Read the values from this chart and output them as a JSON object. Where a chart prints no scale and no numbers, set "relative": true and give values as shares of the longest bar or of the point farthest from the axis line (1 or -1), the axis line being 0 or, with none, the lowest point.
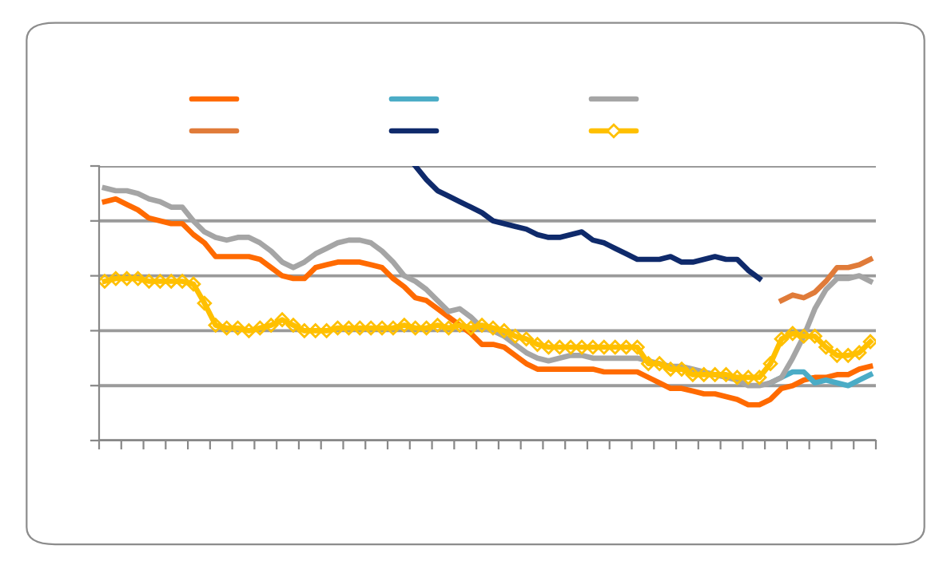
{
  "chart_data": {
    "type": "line",
    "relative": true,
    "grid": "y",
    "categories": [
      null,
      null,
      null,
      null,
      null,
      null,
      null,
      null,
      null,
      null,
      null,
      null,
      null,
      null,
      null,
      null,
      null,
      null,
      null,
      null,
      null,
      null,
      null,
      null,
      null,
      null,
      null,
      null,
      null,
      null,
      null,
      null,
      null,
      null,
      null,
      null,
      null,
      null,
      null,
      null,
      null,
      null,
      null,
      null,
      null,
      null,
      null,
      null,
      null,
      null,
      null,
      null,
      null,
      null,
      null,
      null,
      null,
      null,
      null,
      null,
      null,
      null,
      null,
      null,
      null,
      null,
      null,
      null,
      null,
      null
    ],
    "series": [
      {
        "color": "#ff6a00",
        "marker": "none",
        "values": [
          0.87,
          0.88,
          0.86,
          0.84,
          0.81,
          0.8,
          0.79,
          0.79,
          0.75,
          0.72,
          0.67,
          0.67,
          0.67,
          0.67,
          0.66,
          0.63,
          0.6,
          0.59,
          0.59,
          0.63,
          0.64,
          0.65,
          0.65,
          0.65,
          0.64,
          0.63,
          0.59,
          0.56,
          0.52,
          0.51,
          0.48,
          0.45,
          0.42,
          0.39,
          0.35,
          0.35,
          0.34,
          0.31,
          0.28,
          0.26,
          0.26,
          0.26,
          0.26,
          0.26,
          0.26,
          0.25,
          0.25,
          0.25,
          0.25,
          0.23,
          0.21,
          0.19,
          0.19,
          0.18,
          0.17,
          0.17,
          0.16,
          0.15,
          0.13,
          0.13,
          0.15,
          0.19,
          0.2,
          0.22,
          0.23,
          0.23,
          0.24,
          0.24,
          0.26,
          0.27
        ]
      },
      {
        "color": "#e07b39",
        "marker": "none",
        "values": [
          null,
          null,
          null,
          null,
          null,
          null,
          null,
          null,
          null,
          null,
          null,
          null,
          null,
          null,
          null,
          null,
          null,
          null,
          null,
          null,
          null,
          null,
          null,
          null,
          null,
          null,
          null,
          null,
          null,
          null,
          null,
          null,
          null,
          null,
          null,
          null,
          null,
          null,
          null,
          null,
          null,
          null,
          null,
          null,
          null,
          null,
          null,
          null,
          null,
          null,
          null,
          null,
          null,
          null,
          null,
          null,
          null,
          null,
          null,
          null,
          null,
          0.51,
          0.53,
          0.52,
          0.54,
          0.58,
          0.63,
          0.63,
          0.64,
          0.66
        ]
      },
      {
        "color": "#4bacc6",
        "marker": "none",
        "values": [
          null,
          null,
          null,
          null,
          null,
          null,
          null,
          null,
          null,
          null,
          null,
          null,
          null,
          null,
          null,
          null,
          null,
          null,
          null,
          null,
          null,
          null,
          null,
          null,
          null,
          null,
          null,
          null,
          null,
          null,
          null,
          null,
          null,
          null,
          null,
          null,
          null,
          null,
          null,
          null,
          null,
          null,
          null,
          null,
          null,
          null,
          null,
          null,
          null,
          null,
          null,
          null,
          null,
          null,
          null,
          null,
          null,
          null,
          null,
          null,
          0.21,
          0.23,
          0.25,
          0.25,
          0.21,
          0.22,
          0.21,
          0.2,
          0.22,
          0.24
        ]
      },
      {
        "color": "#0f2a6b",
        "marker": "none",
        "values": [
          null,
          null,
          null,
          null,
          null,
          null,
          null,
          null,
          null,
          null,
          null,
          null,
          null,
          null,
          null,
          null,
          null,
          null,
          null,
          null,
          null,
          null,
          null,
          null,
          null,
          null,
          null,
          null,
          1.0,
          0.95,
          0.91,
          0.89,
          0.87,
          0.85,
          0.83,
          0.8,
          0.79,
          0.78,
          0.77,
          0.75,
          0.74,
          0.74,
          0.75,
          0.76,
          0.73,
          0.72,
          0.7,
          0.68,
          0.66,
          0.66,
          0.66,
          0.67,
          0.65,
          0.65,
          0.66,
          0.67,
          0.66,
          0.66,
          0.62,
          0.59,
          null,
          null,
          null,
          null,
          null,
          null,
          null,
          null,
          null,
          null
        ]
      },
      {
        "color": "#a5a5a5",
        "marker": "none",
        "values": [
          0.92,
          0.91,
          0.91,
          0.9,
          0.88,
          0.87,
          0.85,
          0.85,
          0.8,
          0.76,
          0.74,
          0.73,
          0.74,
          0.74,
          0.72,
          0.69,
          0.65,
          0.63,
          0.65,
          0.68,
          0.7,
          0.72,
          0.73,
          0.73,
          0.72,
          0.69,
          0.65,
          0.6,
          0.58,
          0.55,
          0.51,
          0.47,
          0.48,
          0.45,
          0.41,
          0.4,
          0.38,
          0.35,
          0.32,
          0.3,
          0.29,
          0.3,
          0.31,
          0.31,
          0.3,
          0.3,
          0.3,
          0.3,
          0.3,
          0.29,
          0.28,
          0.27,
          0.27,
          0.26,
          0.25,
          0.24,
          0.23,
          0.22,
          0.2,
          0.2,
          0.21,
          0.23,
          0.3,
          0.38,
          0.48,
          0.55,
          0.59,
          0.59,
          0.6,
          0.58
        ]
      },
      {
        "color": "#ffc000",
        "marker": "diamond",
        "values": [
          0.58,
          0.59,
          0.59,
          0.59,
          0.58,
          0.58,
          0.58,
          0.58,
          0.57,
          0.5,
          0.42,
          0.41,
          0.41,
          0.4,
          0.41,
          0.42,
          0.44,
          0.42,
          0.4,
          0.4,
          0.4,
          0.41,
          0.41,
          0.41,
          0.41,
          0.41,
          0.41,
          0.42,
          0.41,
          0.41,
          0.42,
          0.41,
          0.42,
          0.41,
          0.42,
          0.41,
          0.4,
          0.38,
          0.37,
          0.35,
          0.34,
          0.34,
          0.34,
          0.34,
          0.34,
          0.34,
          0.34,
          0.34,
          0.34,
          0.28,
          0.28,
          0.26,
          0.26,
          0.24,
          0.24,
          0.24,
          0.24,
          0.23,
          0.23,
          0.23,
          0.28,
          0.37,
          0.39,
          0.38,
          0.38,
          0.34,
          0.31,
          0.31,
          0.32,
          0.36
        ]
      }
    ]
  }
}
